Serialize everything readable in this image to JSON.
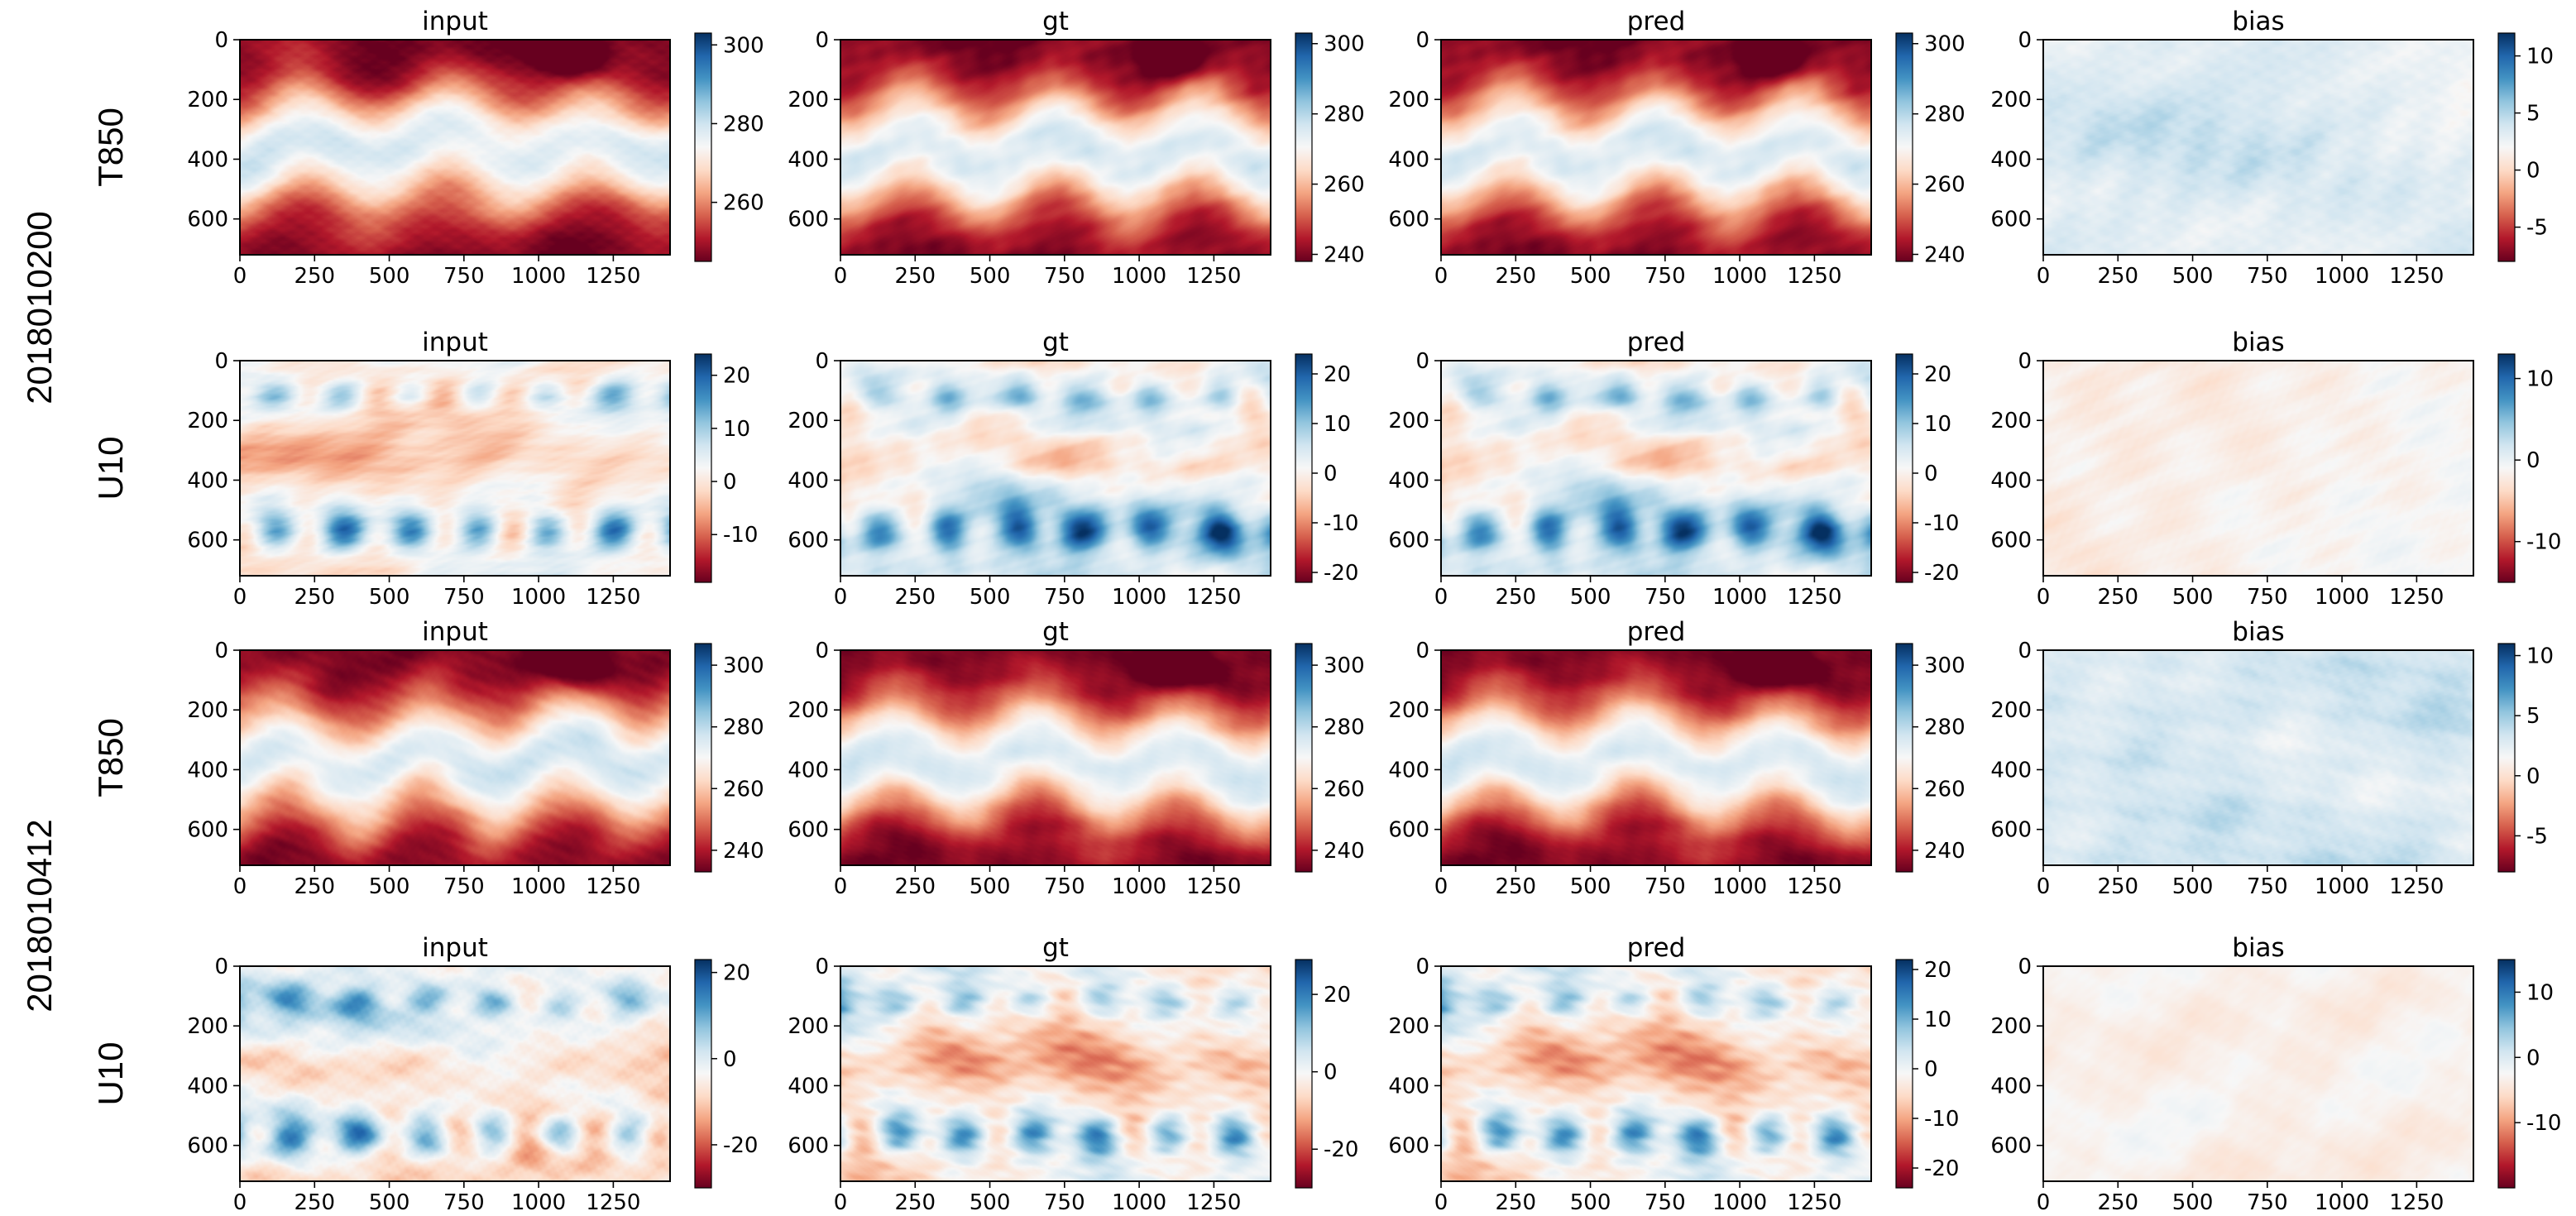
{
  "chart_data": {
    "type": "heatmap",
    "colormap": "RdBu",
    "colormap_colors": [
      "#67001f",
      "#b2182b",
      "#d6604d",
      "#f4a582",
      "#fddbc7",
      "#f7f7f7",
      "#d1e5f0",
      "#92c5de",
      "#4393c3",
      "#2166ac",
      "#053061"
    ],
    "panel_titles": [
      "input",
      "gt",
      "pred",
      "bias"
    ],
    "x_axis": {
      "range": [
        0,
        1440
      ],
      "ticks": [
        0,
        250,
        500,
        750,
        1000,
        1250
      ]
    },
    "y_axis": {
      "range": [
        0,
        720
      ],
      "inverted": true,
      "ticks": [
        0,
        200,
        400,
        600
      ]
    },
    "dates": [
      {
        "label": "2018010200",
        "rows": [
          0,
          1
        ]
      },
      {
        "label": "2018010412",
        "rows": [
          2,
          3
        ]
      }
    ],
    "rows": [
      {
        "date": "2018010200",
        "variable": "T850",
        "kind": "temp",
        "seed": 11,
        "panels": [
          {
            "title": "input",
            "vmin": 245,
            "vmax": 303,
            "cbar_ticks": [
              260,
              280,
              300
            ]
          },
          {
            "title": "gt",
            "vmin": 238,
            "vmax": 303,
            "cbar_ticks": [
              240,
              260,
              280,
              300
            ]
          },
          {
            "title": "pred",
            "vmin": 238,
            "vmax": 303,
            "cbar_ticks": [
              240,
              260,
              280,
              300
            ]
          },
          {
            "title": "bias",
            "vmin": -8,
            "vmax": 12,
            "cbar_ticks": [
              -5,
              0,
              5,
              10
            ]
          }
        ]
      },
      {
        "date": "2018010200",
        "variable": "U10",
        "kind": "wind",
        "seed": 23,
        "panels": [
          {
            "title": "input",
            "vmin": -19,
            "vmax": 24,
            "cbar_ticks": [
              -10,
              0,
              10,
              20
            ]
          },
          {
            "title": "gt",
            "vmin": -22,
            "vmax": 24,
            "cbar_ticks": [
              -20,
              -10,
              0,
              10,
              20
            ]
          },
          {
            "title": "pred",
            "vmin": -22,
            "vmax": 24,
            "cbar_ticks": [
              -20,
              -10,
              0,
              10,
              20
            ]
          },
          {
            "title": "bias",
            "vmin": -15,
            "vmax": 13,
            "cbar_ticks": [
              -10,
              0,
              10
            ]
          }
        ]
      },
      {
        "date": "2018010412",
        "variable": "T850",
        "kind": "temp",
        "seed": 37,
        "panels": [
          {
            "title": "input",
            "vmin": 233,
            "vmax": 307,
            "cbar_ticks": [
              240,
              260,
              280,
              300
            ]
          },
          {
            "title": "gt",
            "vmin": 233,
            "vmax": 307,
            "cbar_ticks": [
              240,
              260,
              280,
              300
            ]
          },
          {
            "title": "pred",
            "vmin": 233,
            "vmax": 307,
            "cbar_ticks": [
              240,
              260,
              280,
              300
            ]
          },
          {
            "title": "bias",
            "vmin": -8,
            "vmax": 11,
            "cbar_ticks": [
              -5,
              0,
              5,
              10
            ]
          }
        ]
      },
      {
        "date": "2018010412",
        "variable": "U10",
        "kind": "wind",
        "seed": 53,
        "panels": [
          {
            "title": "input",
            "vmin": -30,
            "vmax": 23,
            "cbar_ticks": [
              -20,
              0,
              20
            ]
          },
          {
            "title": "gt",
            "vmin": -30,
            "vmax": 29,
            "cbar_ticks": [
              -20,
              0,
              20
            ]
          },
          {
            "title": "pred",
            "vmin": -24,
            "vmax": 22,
            "cbar_ticks": [
              -20,
              -10,
              0,
              10,
              20
            ]
          },
          {
            "title": "bias",
            "vmin": -20,
            "vmax": 15,
            "cbar_ticks": [
              -10,
              0,
              10
            ]
          }
        ]
      }
    ]
  }
}
